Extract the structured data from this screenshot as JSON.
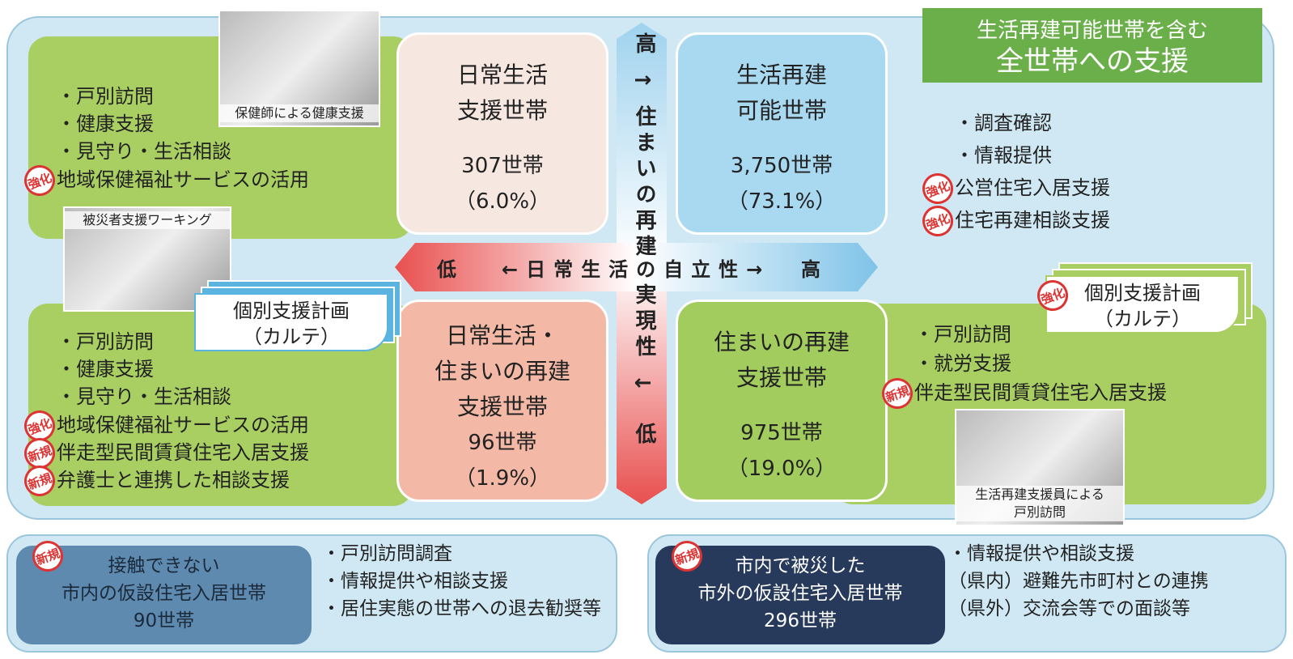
{
  "banner": {
    "lines": [
      "生活再建可能世帯を含む",
      "全世帯への支援"
    ]
  },
  "quadrants": [
    {
      "title": [
        "日常生活",
        "支援世帯"
      ],
      "count": "307世帯",
      "percent": "（6.0%）"
    },
    {
      "title": [
        "生活再建",
        "可能世帯"
      ],
      "count": "3,750世帯",
      "percent": "（73.1%）"
    },
    {
      "title": [
        "日常生活・",
        "住まいの再建",
        "支援世帯"
      ],
      "count": "96世帯",
      "percent": "（1.9%）"
    },
    {
      "title": [
        "住まいの再建",
        "支援世帯"
      ],
      "count": "975世帯",
      "percent": "（19.0%）"
    }
  ],
  "vertical_axis": [
    "高",
    "↑",
    "住まいの再建",
    "実現性",
    "↓",
    "低"
  ],
  "horizontal_axis": [
    "低",
    "←日常生活の自立性→",
    "高"
  ],
  "photos": [
    {
      "caption": [
        "保健師による健康支援"
      ]
    },
    {
      "caption": [
        "被災者支援ワーキング"
      ]
    },
    {
      "caption": [
        "生活再建支援員による",
        "戸別訪問"
      ]
    }
  ],
  "kartes": [
    {
      "lines": [
        "個別支援計画",
        "（カルテ）"
      ]
    },
    {
      "tag": "強化",
      "lines": [
        "個別支援計画",
        "（カルテ）"
      ]
    }
  ],
  "lists": [
    [
      {
        "text": "戸別訪問"
      },
      {
        "text": "健康支援"
      },
      {
        "text": "見守り・生活相談"
      },
      {
        "tag": "強化",
        "text": "地域保健福祉サービスの活用"
      }
    ],
    [
      {
        "text": "調査確認"
      },
      {
        "text": "情報提供"
      },
      {
        "tag": "強化",
        "text": "公営住宅入居支援"
      },
      {
        "tag": "強化",
        "text": "住宅再建相談支援"
      }
    ],
    [
      {
        "text": "戸別訪問"
      },
      {
        "text": "健康支援"
      },
      {
        "text": "見守り・生活相談"
      },
      {
        "tag": "強化",
        "text": "地域保健福祉サービスの活用"
      },
      {
        "tag": "新規",
        "text": "伴走型民間賃貸住宅入居支援"
      },
      {
        "tag": "新規",
        "text": "弁護士と連携した相談支援"
      }
    ],
    [
      {
        "text": "戸別訪問"
      },
      {
        "text": "就労支援"
      },
      {
        "tag": "新規",
        "text": "伴走型民間賃貸住宅入居支援"
      }
    ]
  ],
  "bottom": [
    {
      "tag": "新規",
      "lines": [
        "接触できない",
        "市内の仮設住宅入居世帯",
        "90世帯"
      ],
      "items": [
        "戸別訪問調査",
        "情報提供や相談支援",
        "居住実態の世帯への退去勧奨等"
      ]
    },
    {
      "tag": "新規",
      "lines": [
        "市内で被災した",
        "市外の仮設住宅入居世帯",
        "296世帯"
      ],
      "items": [
        "情報提供や相談支援",
        "（県内）避難先市町村との連携",
        "（県外）交流会等での面談等"
      ]
    }
  ]
}
